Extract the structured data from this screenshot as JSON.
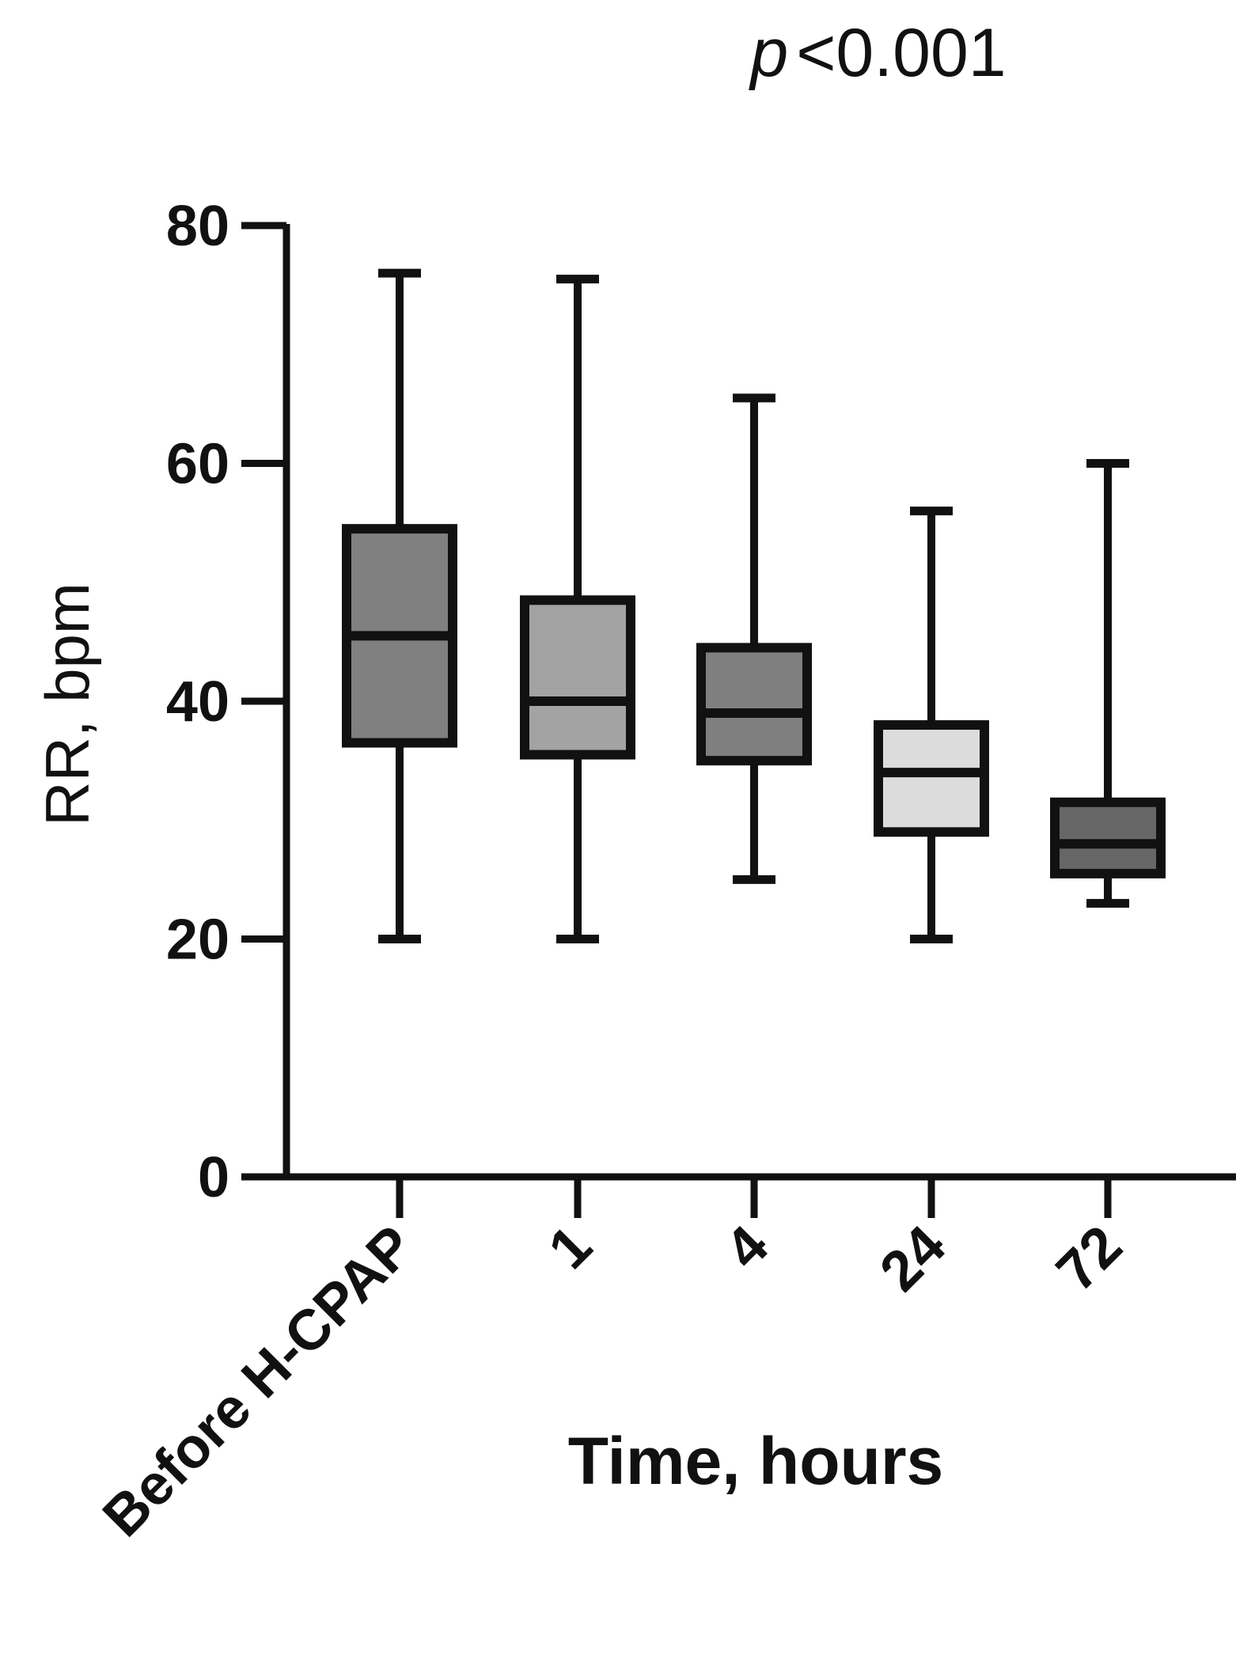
{
  "annotation": {
    "p_symbol": "p",
    "p_text": "<0.001"
  },
  "chart_data": {
    "type": "box",
    "xlabel": "Time, hours",
    "ylabel": "RR, bpm",
    "ylim": [
      0,
      80
    ],
    "yticks": [
      0,
      20,
      40,
      60,
      80
    ],
    "categories": [
      "Before H-CPAP",
      "1",
      "4",
      "24",
      "72"
    ],
    "boxes": [
      {
        "category": "Before H-CPAP",
        "min": 20,
        "q1": 36.5,
        "median": 45.5,
        "q3": 54.5,
        "max": 76,
        "fill": "#808080"
      },
      {
        "category": "1",
        "min": 20,
        "q1": 35.5,
        "median": 40,
        "q3": 48.5,
        "max": 75.5,
        "fill": "#a3a3a3"
      },
      {
        "category": "4",
        "min": 25,
        "q1": 35,
        "median": 39,
        "q3": 44.5,
        "max": 65.5,
        "fill": "#7f7f7f"
      },
      {
        "category": "24",
        "min": 20,
        "q1": 29,
        "median": 34,
        "q3": 38,
        "max": 56,
        "fill": "#dcdcdc"
      },
      {
        "category": "72",
        "min": 23,
        "q1": 25.5,
        "median": 28,
        "q3": 31.5,
        "max": 60,
        "fill": "#666666"
      }
    ]
  }
}
